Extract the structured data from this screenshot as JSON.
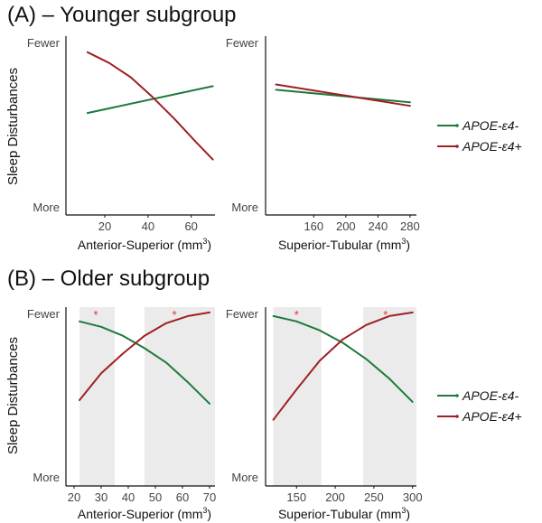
{
  "panels": [
    {
      "label": "(A) – Younger subgroup",
      "ylabel": "Sleep Disturbances",
      "top_label": "Fewer",
      "bottom_label": "More"
    },
    {
      "label": "(B) – Older subgroup",
      "ylabel": "Sleep Disturbances",
      "top_label": "Fewer",
      "bottom_label": "More"
    }
  ],
  "legend": {
    "series": [
      {
        "name": "APOE-ε4-",
        "color": "#1e7a3a"
      },
      {
        "name": "APOE-ε4+",
        "color": "#a01f24"
      }
    ]
  },
  "colors": {
    "green": "#1e7a3a",
    "red": "#a01f24",
    "shade": "#ebebeb",
    "star": "#e03030"
  },
  "chart_data": [
    {
      "type": "line",
      "panel": "A",
      "xlabel": "Anterior-Superior (mm",
      "xlabel_sup": "3",
      "xlabel_end": ")",
      "xlim": [
        2,
        71
      ],
      "xticks": [
        20,
        40,
        60
      ],
      "ylim": [
        0,
        1
      ],
      "series": [
        {
          "name": "APOE-ε4-",
          "x": [
            12,
            70
          ],
          "y": [
            0.57,
            0.72
          ]
        },
        {
          "name": "APOE-ε4+",
          "x": [
            12,
            22,
            32,
            42,
            52,
            62,
            70
          ],
          "y": [
            0.91,
            0.85,
            0.77,
            0.66,
            0.54,
            0.41,
            0.31
          ]
        }
      ]
    },
    {
      "type": "line",
      "panel": "A",
      "xlabel": "Superior-Tubular (mm",
      "xlabel_sup": "3",
      "xlabel_end": ")",
      "xlim": [
        100,
        288
      ],
      "xticks": [
        160,
        200,
        240,
        280
      ],
      "ylim": [
        0,
        1
      ],
      "series": [
        {
          "name": "APOE-ε4-",
          "x": [
            113,
            280
          ],
          "y": [
            0.7,
            0.63
          ]
        },
        {
          "name": "APOE-ε4+",
          "x": [
            113,
            280
          ],
          "y": [
            0.73,
            0.61
          ]
        }
      ]
    },
    {
      "type": "line",
      "panel": "B",
      "xlabel": "Anterior-Superior (mm",
      "xlabel_sup": "3",
      "xlabel_end": ")",
      "xlim": [
        17,
        72
      ],
      "xticks": [
        20,
        30,
        40,
        50,
        60,
        70
      ],
      "ylim": [
        0,
        1
      ],
      "shaded_ranges": [
        [
          22,
          35
        ],
        [
          46,
          72
        ]
      ],
      "significance_markers": [
        {
          "label": "*",
          "x": 28
        },
        {
          "label": "*",
          "x": 57
        }
      ],
      "series": [
        {
          "name": "APOE-ε4-",
          "x": [
            22,
            30,
            38,
            46,
            54,
            62,
            70
          ],
          "y": [
            0.92,
            0.89,
            0.84,
            0.77,
            0.69,
            0.58,
            0.46
          ]
        },
        {
          "name": "APOE-ε4+",
          "x": [
            22,
            30,
            38,
            46,
            54,
            62,
            70
          ],
          "y": [
            0.48,
            0.63,
            0.74,
            0.84,
            0.91,
            0.95,
            0.97
          ]
        }
      ]
    },
    {
      "type": "line",
      "panel": "B",
      "xlabel": "Superior-Tubular (mm",
      "xlabel_sup": "3",
      "xlabel_end": ")",
      "xlim": [
        110,
        305
      ],
      "xticks": [
        150,
        200,
        250,
        300
      ],
      "ylim": [
        0,
        1
      ],
      "shaded_ranges": [
        [
          120,
          182
        ],
        [
          236,
          305
        ]
      ],
      "significance_markers": [
        {
          "label": "*",
          "x": 150
        },
        {
          "label": "*",
          "x": 265
        }
      ],
      "series": [
        {
          "name": "APOE-ε4-",
          "x": [
            120,
            150,
            180,
            210,
            240,
            270,
            300
          ],
          "y": [
            0.95,
            0.92,
            0.87,
            0.8,
            0.71,
            0.6,
            0.47
          ]
        },
        {
          "name": "APOE-ε4+",
          "x": [
            120,
            150,
            180,
            210,
            240,
            270,
            300
          ],
          "y": [
            0.37,
            0.54,
            0.7,
            0.82,
            0.9,
            0.95,
            0.97
          ]
        }
      ]
    }
  ]
}
